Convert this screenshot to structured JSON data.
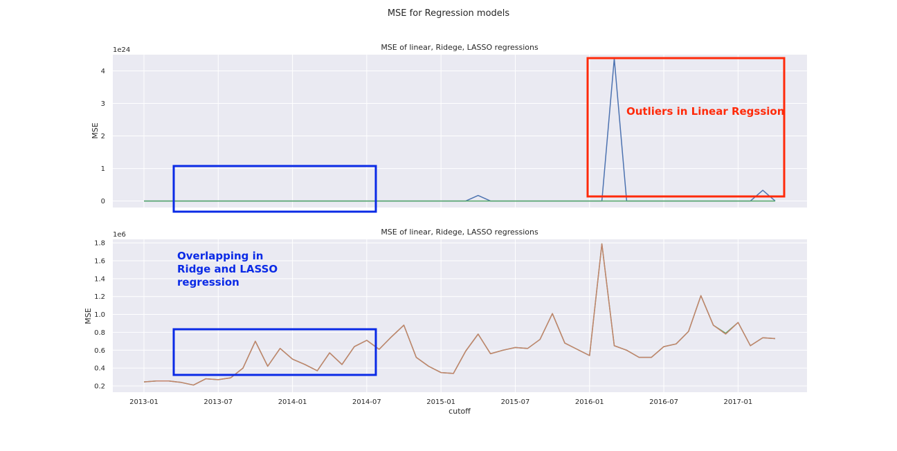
{
  "figure": {
    "suptitle": "MSE for Regression models"
  },
  "top_panel": {
    "title": "MSE of linear, Ridege, LASSO regressions",
    "ylabel": "MSE",
    "offset_text": "1e24",
    "annotation": "Outliers in Linear Regssion",
    "annotation_color": "#ff2a0a"
  },
  "bottom_panel": {
    "title": "MSE of linear, Ridege, LASSO regressions",
    "ylabel": "MSE",
    "xlabel": "cutoff",
    "offset_text": "1e6",
    "annotation_lines": [
      "Overlapping in",
      "Ridge and LASSO",
      "regression"
    ],
    "annotation_color": "#0a2ae6"
  },
  "colors": {
    "background": "#eaeaf2",
    "grid": "#ffffff",
    "linear": "#4c72b0",
    "ridge": "#55a868",
    "lasso": "#c4836b",
    "red_box": "#ff2a0a",
    "blue_box": "#0a2ae6"
  },
  "chart_data": [
    {
      "type": "line",
      "title": "MSE of linear, Ridege, LASSO regressions",
      "xlabel": "",
      "ylabel": "MSE",
      "y_scale_offset": "1e24",
      "x_tick_labels": [
        "2013-01",
        "2013-07",
        "2014-01",
        "2014-07",
        "2015-01",
        "2015-07",
        "2016-01",
        "2016-07",
        "2017-01"
      ],
      "y_tick_labels": [
        "0",
        "1",
        "2",
        "3",
        "4"
      ],
      "ylim": [
        -0.2,
        4.5
      ],
      "x": [
        "2013-01",
        "2013-02",
        "2013-03",
        "2013-04",
        "2013-05",
        "2013-06",
        "2013-07",
        "2013-08",
        "2013-09",
        "2013-10",
        "2013-11",
        "2013-12",
        "2014-01",
        "2014-02",
        "2014-03",
        "2014-04",
        "2014-05",
        "2014-06",
        "2014-07",
        "2014-08",
        "2014-09",
        "2014-10",
        "2014-11",
        "2014-12",
        "2015-01",
        "2015-02",
        "2015-03",
        "2015-04",
        "2015-05",
        "2015-06",
        "2015-07",
        "2015-08",
        "2015-09",
        "2015-10",
        "2015-11",
        "2015-12",
        "2016-01",
        "2016-02",
        "2016-03",
        "2016-04",
        "2016-05",
        "2016-06",
        "2016-07",
        "2016-08",
        "2016-09",
        "2016-10",
        "2016-11",
        "2016-12",
        "2017-01",
        "2017-02",
        "2017-03",
        "2017-04"
      ],
      "series": [
        {
          "name": "linear",
          "values": [
            0,
            0,
            0,
            0,
            0,
            0,
            0,
            0,
            0,
            0,
            0,
            0,
            0,
            0,
            0,
            0,
            0,
            0,
            0,
            0,
            0,
            0,
            0,
            0,
            0,
            0,
            0,
            0.17,
            0,
            0,
            0,
            0,
            0,
            0,
            0,
            0,
            0,
            0,
            4.38,
            0,
            0,
            0,
            0,
            0,
            0,
            0,
            0,
            0,
            0,
            0,
            0.33,
            0
          ]
        },
        {
          "name": "ridge",
          "values": [
            0,
            0,
            0,
            0,
            0,
            0,
            0,
            0,
            0,
            0,
            0,
            0,
            0,
            0,
            0,
            0,
            0,
            0,
            0,
            0,
            0,
            0,
            0,
            0,
            0,
            0,
            0,
            0,
            0,
            0,
            0,
            0,
            0,
            0,
            0,
            0,
            0,
            0,
            0,
            0,
            0,
            0,
            0,
            0,
            0,
            0,
            0,
            0,
            0,
            0,
            0,
            0
          ]
        }
      ],
      "grid": true
    },
    {
      "type": "line",
      "title": "MSE of linear, Ridege, LASSO regressions",
      "xlabel": "cutoff",
      "ylabel": "MSE",
      "y_scale_offset": "1e6",
      "x_tick_labels": [
        "2013-01",
        "2013-07",
        "2014-01",
        "2014-07",
        "2015-01",
        "2015-07",
        "2016-01",
        "2016-07",
        "2017-01"
      ],
      "y_tick_labels": [
        "0.2",
        "0.4",
        "0.6",
        "0.8",
        "1.0",
        "1.2",
        "1.4",
        "1.6",
        "1.8"
      ],
      "ylim": [
        0.13,
        1.84
      ],
      "x": [
        "2013-01",
        "2013-02",
        "2013-03",
        "2013-04",
        "2013-05",
        "2013-06",
        "2013-07",
        "2013-08",
        "2013-09",
        "2013-10",
        "2013-11",
        "2013-12",
        "2014-01",
        "2014-02",
        "2014-03",
        "2014-04",
        "2014-05",
        "2014-06",
        "2014-07",
        "2014-08",
        "2014-09",
        "2014-10",
        "2014-11",
        "2014-12",
        "2015-01",
        "2015-02",
        "2015-03",
        "2015-04",
        "2015-05",
        "2015-06",
        "2015-07",
        "2015-08",
        "2015-09",
        "2015-10",
        "2015-11",
        "2015-12",
        "2016-01",
        "2016-02",
        "2016-03",
        "2016-04",
        "2016-05",
        "2016-06",
        "2016-07",
        "2016-08",
        "2016-09",
        "2016-10",
        "2016-11",
        "2016-12",
        "2017-01",
        "2017-02",
        "2017-03",
        "2017-04"
      ],
      "series": [
        {
          "name": "ridge",
          "values": [
            0.245,
            0.255,
            0.255,
            0.24,
            0.21,
            0.28,
            0.27,
            0.29,
            0.4,
            0.7,
            0.42,
            0.62,
            0.5,
            0.44,
            0.37,
            0.57,
            0.44,
            0.64,
            0.71,
            0.61,
            0.75,
            0.88,
            0.52,
            0.42,
            0.35,
            0.34,
            0.59,
            0.78,
            0.56,
            0.6,
            0.63,
            0.62,
            0.72,
            1.01,
            0.68,
            0.61,
            0.54,
            1.79,
            0.65,
            0.6,
            0.52,
            0.52,
            0.64,
            0.67,
            0.81,
            1.21,
            0.88,
            0.79,
            0.91,
            0.65,
            0.74,
            0.73
          ]
        },
        {
          "name": "lasso",
          "values": [
            0.245,
            0.255,
            0.255,
            0.24,
            0.21,
            0.28,
            0.27,
            0.29,
            0.4,
            0.7,
            0.42,
            0.62,
            0.5,
            0.44,
            0.37,
            0.57,
            0.44,
            0.64,
            0.71,
            0.61,
            0.75,
            0.88,
            0.52,
            0.42,
            0.35,
            0.34,
            0.59,
            0.78,
            0.56,
            0.6,
            0.63,
            0.62,
            0.72,
            1.01,
            0.68,
            0.61,
            0.54,
            1.79,
            0.65,
            0.6,
            0.52,
            0.52,
            0.64,
            0.67,
            0.81,
            1.21,
            0.88,
            0.78,
            0.91,
            0.65,
            0.74,
            0.73
          ]
        }
      ],
      "grid": true
    }
  ]
}
